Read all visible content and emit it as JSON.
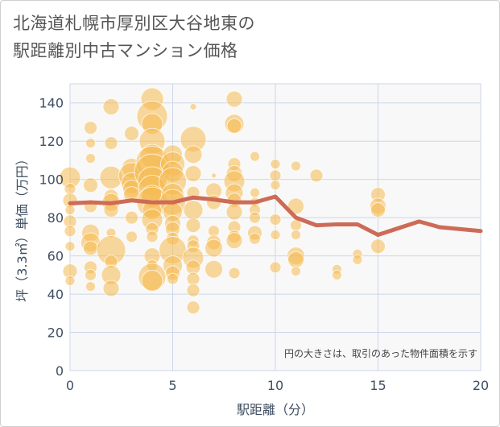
{
  "title": "北海道札幌市厚別区大谷地東の\n駅距離別中古マンション価格",
  "colors": {
    "bubble": "#f5b94f",
    "line": "#cd6b57",
    "grid": "#ccd6eb",
    "plot_bg": "#f8f8f8"
  },
  "chart_data": {
    "type": "scatter",
    "xlabel": "駅距離（分）",
    "ylabel": "坪（3.3㎡）単価（万円）",
    "xlim": [
      0,
      20
    ],
    "ylim": [
      0,
      150
    ],
    "xticks": [
      0,
      5,
      10,
      15,
      20
    ],
    "yticks": [
      0,
      20,
      40,
      60,
      80,
      100,
      120,
      140
    ],
    "grid": true,
    "annotation": "円の大きさは、取引のあった物件面積を示す",
    "average_line": {
      "x": [
        0,
        1,
        2,
        3,
        4,
        5,
        6,
        7,
        8,
        9,
        10,
        11,
        12,
        13,
        14,
        15,
        16,
        17,
        18,
        19,
        20
      ],
      "y": [
        87.5,
        88,
        87.5,
        89,
        88,
        88,
        90.5,
        89.5,
        88,
        88,
        91,
        80,
        76,
        76.5,
        76.5,
        71,
        74.5,
        78,
        75,
        74,
        73
      ]
    },
    "points": [
      {
        "x": 0,
        "y": 101,
        "r": 13
      },
      {
        "x": 0,
        "y": 95,
        "r": 7
      },
      {
        "x": 0,
        "y": 89,
        "r": 9
      },
      {
        "x": 0,
        "y": 84,
        "r": 6
      },
      {
        "x": 0,
        "y": 78,
        "r": 8
      },
      {
        "x": 0,
        "y": 73,
        "r": 7
      },
      {
        "x": 0,
        "y": 65,
        "r": 6
      },
      {
        "x": 0,
        "y": 52,
        "r": 9
      },
      {
        "x": 0,
        "y": 47,
        "r": 6
      },
      {
        "x": 1,
        "y": 127,
        "r": 8
      },
      {
        "x": 1,
        "y": 119,
        "r": 6
      },
      {
        "x": 1,
        "y": 111,
        "r": 6
      },
      {
        "x": 1,
        "y": 97,
        "r": 9
      },
      {
        "x": 1,
        "y": 86,
        "r": 8
      },
      {
        "x": 1,
        "y": 72,
        "r": 11
      },
      {
        "x": 1,
        "y": 67,
        "r": 12
      },
      {
        "x": 1,
        "y": 64,
        "r": 9
      },
      {
        "x": 1,
        "y": 54,
        "r": 8
      },
      {
        "x": 1,
        "y": 50,
        "r": 7
      },
      {
        "x": 1,
        "y": 44,
        "r": 6
      },
      {
        "x": 2,
        "y": 138,
        "r": 10
      },
      {
        "x": 2,
        "y": 119,
        "r": 8
      },
      {
        "x": 2,
        "y": 101,
        "r": 14
      },
      {
        "x": 2,
        "y": 91,
        "r": 9
      },
      {
        "x": 2,
        "y": 88,
        "r": 11
      },
      {
        "x": 2,
        "y": 84,
        "r": 9
      },
      {
        "x": 2,
        "y": 72,
        "r": 6
      },
      {
        "x": 2,
        "y": 63,
        "r": 18
      },
      {
        "x": 2,
        "y": 57,
        "r": 8
      },
      {
        "x": 2,
        "y": 50,
        "r": 12
      },
      {
        "x": 2,
        "y": 43,
        "r": 10
      },
      {
        "x": 3,
        "y": 124,
        "r": 9
      },
      {
        "x": 3,
        "y": 106,
        "r": 12
      },
      {
        "x": 3,
        "y": 102,
        "r": 16
      },
      {
        "x": 3,
        "y": 98,
        "r": 13
      },
      {
        "x": 3,
        "y": 95,
        "r": 11
      },
      {
        "x": 3,
        "y": 92,
        "r": 10
      },
      {
        "x": 3,
        "y": 80,
        "r": 8
      },
      {
        "x": 3,
        "y": 70,
        "r": 7
      },
      {
        "x": 4,
        "y": 142,
        "r": 14
      },
      {
        "x": 4,
        "y": 133,
        "r": 19
      },
      {
        "x": 4,
        "y": 129,
        "r": 13
      },
      {
        "x": 4,
        "y": 120,
        "r": 16
      },
      {
        "x": 4,
        "y": 112,
        "r": 15
      },
      {
        "x": 4,
        "y": 109,
        "r": 20
      },
      {
        "x": 4,
        "y": 104,
        "r": 22
      },
      {
        "x": 4,
        "y": 99,
        "r": 18
      },
      {
        "x": 4,
        "y": 95,
        "r": 17
      },
      {
        "x": 4,
        "y": 91,
        "r": 14
      },
      {
        "x": 4,
        "y": 88,
        "r": 19
      },
      {
        "x": 4,
        "y": 84,
        "r": 12
      },
      {
        "x": 4,
        "y": 79,
        "r": 13
      },
      {
        "x": 4,
        "y": 74,
        "r": 8
      },
      {
        "x": 4,
        "y": 70,
        "r": 7
      },
      {
        "x": 4,
        "y": 60,
        "r": 10
      },
      {
        "x": 4,
        "y": 55,
        "r": 7
      },
      {
        "x": 4,
        "y": 49,
        "r": 17
      },
      {
        "x": 4,
        "y": 47,
        "r": 13
      },
      {
        "x": 5,
        "y": 113,
        "r": 12
      },
      {
        "x": 5,
        "y": 108,
        "r": 15
      },
      {
        "x": 5,
        "y": 104,
        "r": 13
      },
      {
        "x": 5,
        "y": 99,
        "r": 17
      },
      {
        "x": 5,
        "y": 92,
        "r": 14
      },
      {
        "x": 5,
        "y": 88,
        "r": 16
      },
      {
        "x": 5,
        "y": 83,
        "r": 12
      },
      {
        "x": 5,
        "y": 77,
        "r": 10
      },
      {
        "x": 5,
        "y": 74,
        "r": 9
      },
      {
        "x": 5,
        "y": 69,
        "r": 8
      },
      {
        "x": 5,
        "y": 63,
        "r": 17
      },
      {
        "x": 5,
        "y": 55,
        "r": 12
      },
      {
        "x": 5,
        "y": 51,
        "r": 9
      },
      {
        "x": 5,
        "y": 48,
        "r": 7
      },
      {
        "x": 6,
        "y": 138,
        "r": 4
      },
      {
        "x": 6,
        "y": 121,
        "r": 16
      },
      {
        "x": 6,
        "y": 113,
        "r": 11
      },
      {
        "x": 6,
        "y": 103,
        "r": 10
      },
      {
        "x": 6,
        "y": 93,
        "r": 8
      },
      {
        "x": 6,
        "y": 84,
        "r": 12
      },
      {
        "x": 6,
        "y": 76,
        "r": 9
      },
      {
        "x": 6,
        "y": 68,
        "r": 7
      },
      {
        "x": 6,
        "y": 65,
        "r": 8
      },
      {
        "x": 6,
        "y": 59,
        "r": 13
      },
      {
        "x": 6,
        "y": 54,
        "r": 9
      },
      {
        "x": 6,
        "y": 48,
        "r": 8
      },
      {
        "x": 6,
        "y": 42,
        "r": 8
      },
      {
        "x": 6,
        "y": 33,
        "r": 8
      },
      {
        "x": 7,
        "y": 102,
        "r": 3
      },
      {
        "x": 7,
        "y": 94,
        "r": 10
      },
      {
        "x": 7,
        "y": 88,
        "r": 9
      },
      {
        "x": 7,
        "y": 73,
        "r": 7
      },
      {
        "x": 7,
        "y": 67,
        "r": 9
      },
      {
        "x": 7,
        "y": 64,
        "r": 11
      },
      {
        "x": 7,
        "y": 53,
        "r": 11
      },
      {
        "x": 8,
        "y": 142,
        "r": 10
      },
      {
        "x": 8,
        "y": 129,
        "r": 12
      },
      {
        "x": 8,
        "y": 128,
        "r": 9
      },
      {
        "x": 8,
        "y": 108,
        "r": 8
      },
      {
        "x": 8,
        "y": 103,
        "r": 10
      },
      {
        "x": 8,
        "y": 99,
        "r": 13
      },
      {
        "x": 8,
        "y": 93,
        "r": 11
      },
      {
        "x": 8,
        "y": 89,
        "r": 9
      },
      {
        "x": 8,
        "y": 83,
        "r": 10
      },
      {
        "x": 8,
        "y": 75,
        "r": 8
      },
      {
        "x": 8,
        "y": 70,
        "r": 8
      },
      {
        "x": 8,
        "y": 68,
        "r": 10
      },
      {
        "x": 8,
        "y": 51,
        "r": 7
      },
      {
        "x": 9,
        "y": 112,
        "r": 6
      },
      {
        "x": 9,
        "y": 93,
        "r": 6
      },
      {
        "x": 9,
        "y": 88,
        "r": 6
      },
      {
        "x": 9,
        "y": 84,
        "r": 7
      },
      {
        "x": 9,
        "y": 80,
        "r": 7
      },
      {
        "x": 9,
        "y": 72,
        "r": 9
      },
      {
        "x": 9,
        "y": 69,
        "r": 7
      },
      {
        "x": 10,
        "y": 108,
        "r": 6
      },
      {
        "x": 10,
        "y": 102,
        "r": 7
      },
      {
        "x": 10,
        "y": 97,
        "r": 6
      },
      {
        "x": 10,
        "y": 79,
        "r": 7
      },
      {
        "x": 10,
        "y": 71,
        "r": 6
      },
      {
        "x": 10,
        "y": 54,
        "r": 7
      },
      {
        "x": 11,
        "y": 107,
        "r": 6
      },
      {
        "x": 11,
        "y": 86,
        "r": 10
      },
      {
        "x": 11,
        "y": 76,
        "r": 7
      },
      {
        "x": 11,
        "y": 71,
        "r": 6
      },
      {
        "x": 11,
        "y": 60,
        "r": 11
      },
      {
        "x": 11,
        "y": 58,
        "r": 10
      },
      {
        "x": 11,
        "y": 52,
        "r": 6
      },
      {
        "x": 12,
        "y": 102,
        "r": 8
      },
      {
        "x": 13,
        "y": 53,
        "r": 6
      },
      {
        "x": 13,
        "y": 50,
        "r": 6
      },
      {
        "x": 14,
        "y": 61,
        "r": 6
      },
      {
        "x": 14,
        "y": 58,
        "r": 6
      },
      {
        "x": 15,
        "y": 92,
        "r": 9
      },
      {
        "x": 15,
        "y": 86,
        "r": 10
      },
      {
        "x": 15,
        "y": 84,
        "r": 9
      },
      {
        "x": 15,
        "y": 65,
        "r": 9
      }
    ]
  }
}
